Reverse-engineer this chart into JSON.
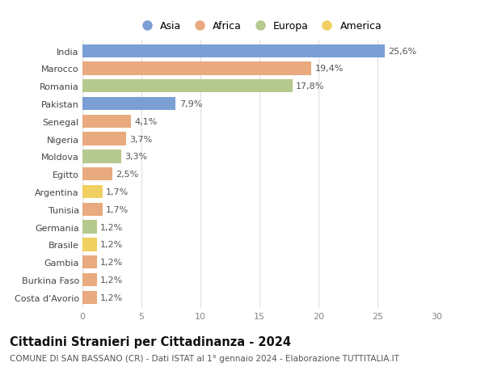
{
  "countries": [
    "India",
    "Marocco",
    "Romania",
    "Pakistan",
    "Senegal",
    "Nigeria",
    "Moldova",
    "Egitto",
    "Argentina",
    "Tunisia",
    "Germania",
    "Brasile",
    "Gambia",
    "Burkina Faso",
    "Costa d'Avorio"
  ],
  "values": [
    25.6,
    19.4,
    17.8,
    7.9,
    4.1,
    3.7,
    3.3,
    2.5,
    1.7,
    1.7,
    1.2,
    1.2,
    1.2,
    1.2,
    1.2
  ],
  "labels": [
    "25,6%",
    "19,4%",
    "17,8%",
    "7,9%",
    "4,1%",
    "3,7%",
    "3,3%",
    "2,5%",
    "1,7%",
    "1,7%",
    "1,2%",
    "1,2%",
    "1,2%",
    "1,2%",
    "1,2%"
  ],
  "continents": [
    "Asia",
    "Africa",
    "Europa",
    "Asia",
    "Africa",
    "Africa",
    "Europa",
    "Africa",
    "America",
    "Africa",
    "Europa",
    "America",
    "Africa",
    "Africa",
    "Africa"
  ],
  "continent_colors": {
    "Asia": "#7b9fd4",
    "Africa": "#e8aa7e",
    "Europa": "#b5c98e",
    "America": "#f0d060"
  },
  "legend_order": [
    "Asia",
    "Africa",
    "Europa",
    "America"
  ],
  "title": "Cittadini Stranieri per Cittadinanza - 2024",
  "subtitle": "COMUNE DI SAN BASSANO (CR) - Dati ISTAT al 1° gennaio 2024 - Elaborazione TUTTITALIA.IT",
  "xlim": [
    0,
    30
  ],
  "xticks": [
    0,
    5,
    10,
    15,
    20,
    25,
    30
  ],
  "background_color": "#ffffff",
  "grid_color": "#dddddd",
  "bar_height": 0.75,
  "label_fontsize": 8,
  "tick_fontsize": 8,
  "title_fontsize": 10.5,
  "subtitle_fontsize": 7.5
}
